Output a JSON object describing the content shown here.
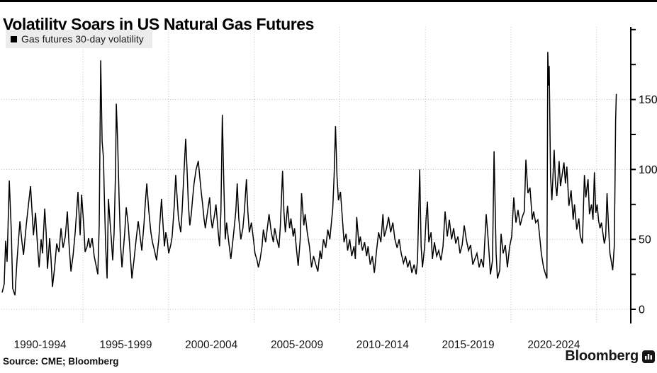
{
  "header": {
    "title": "Volatility Soars in US Natural Gas Futures"
  },
  "legend": {
    "label": "Gas futures 30-day volatility",
    "marker": "black-square"
  },
  "footer": {
    "source": "Source: CME; Bloomberg",
    "brand": "Bloomberg",
    "brand_icon": "bloomberg-terminal-icon"
  },
  "colors": {
    "line": "#000000",
    "grid": "#bfbfbf",
    "axis": "#000000",
    "tick_label": "#000000",
    "band_label": "#1a1a1a",
    "legend_bg": "#ececec",
    "background": "#ffffff",
    "top_rule": "#000000"
  },
  "chart_data": {
    "type": "line",
    "title": "Volatility Soars in US Natural Gas Futures",
    "xlabel": "",
    "ylabel": "",
    "grid": true,
    "legend_position": "top-left",
    "series_name": "Gas futures 30-day volatility",
    "y_axis_side": "right",
    "ylim": [
      -10,
      200
    ],
    "y_tick_labels": [
      0,
      50,
      100,
      150
    ],
    "y_minor_ticks": [
      25,
      75,
      125,
      175,
      200
    ],
    "x_gridline_years": [
      1995,
      2000,
      2005,
      2010,
      2015,
      2020,
      2025
    ],
    "x_band_labels": [
      {
        "label": "1990-1994",
        "center_year": 1992.5
      },
      {
        "label": "1995-1999",
        "center_year": 1997.5
      },
      {
        "label": "2000-2004",
        "center_year": 2002.5
      },
      {
        "label": "2005-2009",
        "center_year": 2007.5
      },
      {
        "label": "2010-2014",
        "center_year": 2012.5
      },
      {
        "label": "2015-2019",
        "center_year": 2017.5
      },
      {
        "label": "2020-2024",
        "center_year": 2022.5
      }
    ],
    "points": [
      [
        1990.28,
        12
      ],
      [
        1990.4,
        18
      ],
      [
        1990.49,
        49
      ],
      [
        1990.57,
        34
      ],
      [
        1990.7,
        92
      ],
      [
        1990.82,
        55
      ],
      [
        1990.9,
        15
      ],
      [
        1991.03,
        10
      ],
      [
        1991.15,
        35
      ],
      [
        1991.32,
        63
      ],
      [
        1991.44,
        48
      ],
      [
        1991.53,
        39
      ],
      [
        1991.69,
        60
      ],
      [
        1991.82,
        75
      ],
      [
        1991.94,
        88
      ],
      [
        1992.11,
        53
      ],
      [
        1992.23,
        69
      ],
      [
        1992.35,
        45
      ],
      [
        1992.44,
        30
      ],
      [
        1992.56,
        50
      ],
      [
        1992.64,
        40
      ],
      [
        1992.77,
        72
      ],
      [
        1992.85,
        55
      ],
      [
        1992.93,
        29
      ],
      [
        1993.06,
        51
      ],
      [
        1993.14,
        35
      ],
      [
        1993.22,
        16
      ],
      [
        1993.35,
        30
      ],
      [
        1993.47,
        47
      ],
      [
        1993.6,
        41
      ],
      [
        1993.72,
        58
      ],
      [
        1993.84,
        44
      ],
      [
        1993.97,
        52
      ],
      [
        1994.09,
        70
      ],
      [
        1994.18,
        48
      ],
      [
        1994.3,
        27
      ],
      [
        1994.42,
        38
      ],
      [
        1994.55,
        55
      ],
      [
        1994.71,
        84
      ],
      [
        1994.84,
        53
      ],
      [
        1994.92,
        82
      ],
      [
        1995.05,
        60
      ],
      [
        1995.13,
        41
      ],
      [
        1995.25,
        45
      ],
      [
        1995.33,
        51
      ],
      [
        1995.42,
        44
      ],
      [
        1995.54,
        51
      ],
      [
        1995.66,
        38
      ],
      [
        1995.79,
        30
      ],
      [
        1995.87,
        25
      ],
      [
        1995.95,
        60
      ],
      [
        1996.04,
        178
      ],
      [
        1996.12,
        120
      ],
      [
        1996.2,
        108
      ],
      [
        1996.24,
        85
      ],
      [
        1996.33,
        45
      ],
      [
        1996.41,
        22
      ],
      [
        1996.49,
        79
      ],
      [
        1996.57,
        65
      ],
      [
        1996.66,
        50
      ],
      [
        1996.74,
        35
      ],
      [
        1996.82,
        55
      ],
      [
        1996.91,
        100
      ],
      [
        1996.95,
        147
      ],
      [
        1997.03,
        120
      ],
      [
        1997.11,
        80
      ],
      [
        1997.2,
        45
      ],
      [
        1997.28,
        30
      ],
      [
        1997.36,
        42
      ],
      [
        1997.44,
        55
      ],
      [
        1997.53,
        73
      ],
      [
        1997.65,
        60
      ],
      [
        1997.73,
        45
      ],
      [
        1997.86,
        22
      ],
      [
        1997.98,
        35
      ],
      [
        1998.11,
        50
      ],
      [
        1998.23,
        63
      ],
      [
        1998.31,
        55
      ],
      [
        1998.44,
        42
      ],
      [
        1998.56,
        60
      ],
      [
        1998.64,
        75
      ],
      [
        1998.73,
        90
      ],
      [
        1998.85,
        70
      ],
      [
        1998.97,
        55
      ],
      [
        1999.06,
        48
      ],
      [
        1999.18,
        42
      ],
      [
        1999.3,
        35
      ],
      [
        1999.43,
        50
      ],
      [
        1999.51,
        65
      ],
      [
        1999.59,
        79
      ],
      [
        1999.68,
        60
      ],
      [
        1999.76,
        45
      ],
      [
        1999.84,
        55
      ],
      [
        1999.92,
        50
      ],
      [
        2000.01,
        40
      ],
      [
        2000.13,
        46
      ],
      [
        2000.21,
        52
      ],
      [
        2000.34,
        75
      ],
      [
        2000.42,
        96
      ],
      [
        2000.5,
        80
      ],
      [
        2000.58,
        65
      ],
      [
        2000.71,
        55
      ],
      [
        2000.79,
        70
      ],
      [
        2000.87,
        90
      ],
      [
        2001.0,
        122
      ],
      [
        2001.08,
        100
      ],
      [
        2001.16,
        75
      ],
      [
        2001.24,
        60
      ],
      [
        2001.33,
        68
      ],
      [
        2001.41,
        80
      ],
      [
        2001.49,
        90
      ],
      [
        2001.61,
        100
      ],
      [
        2001.74,
        106
      ],
      [
        2001.82,
        95
      ],
      [
        2001.9,
        85
      ],
      [
        2001.99,
        75
      ],
      [
        2002.07,
        65
      ],
      [
        2002.15,
        58
      ],
      [
        2002.28,
        70
      ],
      [
        2002.4,
        80
      ],
      [
        2002.48,
        65
      ],
      [
        2002.56,
        58
      ],
      [
        2002.69,
        68
      ],
      [
        2002.77,
        75
      ],
      [
        2002.9,
        55
      ],
      [
        2002.98,
        45
      ],
      [
        2003.06,
        70
      ],
      [
        2003.14,
        139
      ],
      [
        2003.23,
        90
      ],
      [
        2003.31,
        50
      ],
      [
        2003.39,
        62
      ],
      [
        2003.52,
        48
      ],
      [
        2003.64,
        36
      ],
      [
        2003.72,
        45
      ],
      [
        2003.81,
        55
      ],
      [
        2003.93,
        70
      ],
      [
        2004.01,
        90
      ],
      [
        2004.1,
        65
      ],
      [
        2004.22,
        50
      ],
      [
        2004.34,
        58
      ],
      [
        2004.43,
        70
      ],
      [
        2004.55,
        93
      ],
      [
        2004.63,
        70
      ],
      [
        2004.72,
        55
      ],
      [
        2004.84,
        62
      ],
      [
        2004.96,
        50
      ],
      [
        2005.05,
        40
      ],
      [
        2005.17,
        35
      ],
      [
        2005.25,
        30
      ],
      [
        2005.34,
        35
      ],
      [
        2005.46,
        45
      ],
      [
        2005.54,
        57
      ],
      [
        2005.67,
        48
      ],
      [
        2005.79,
        60
      ],
      [
        2005.87,
        68
      ],
      [
        2006.0,
        55
      ],
      [
        2006.12,
        48
      ],
      [
        2006.2,
        58
      ],
      [
        2006.33,
        50
      ],
      [
        2006.45,
        44
      ],
      [
        2006.53,
        60
      ],
      [
        2006.66,
        99
      ],
      [
        2006.74,
        70
      ],
      [
        2006.82,
        55
      ],
      [
        2006.95,
        74
      ],
      [
        2007.07,
        58
      ],
      [
        2007.15,
        65
      ],
      [
        2007.28,
        52
      ],
      [
        2007.36,
        58
      ],
      [
        2007.48,
        42
      ],
      [
        2007.57,
        31
      ],
      [
        2007.69,
        50
      ],
      [
        2007.77,
        83
      ],
      [
        2007.9,
        60
      ],
      [
        2007.98,
        68
      ],
      [
        2008.1,
        55
      ],
      [
        2008.23,
        45
      ],
      [
        2008.35,
        30
      ],
      [
        2008.47,
        38
      ],
      [
        2008.6,
        32
      ],
      [
        2008.72,
        27
      ],
      [
        2008.85,
        42
      ],
      [
        2008.93,
        36
      ],
      [
        2009.05,
        50
      ],
      [
        2009.18,
        44
      ],
      [
        2009.3,
        57
      ],
      [
        2009.42,
        50
      ],
      [
        2009.51,
        62
      ],
      [
        2009.59,
        72
      ],
      [
        2009.67,
        95
      ],
      [
        2009.75,
        131
      ],
      [
        2009.84,
        95
      ],
      [
        2009.92,
        78
      ],
      [
        2010.04,
        84
      ],
      [
        2010.17,
        62
      ],
      [
        2010.25,
        48
      ],
      [
        2010.37,
        54
      ],
      [
        2010.46,
        42
      ],
      [
        2010.58,
        50
      ],
      [
        2010.7,
        38
      ],
      [
        2010.83,
        45
      ],
      [
        2010.91,
        36
      ],
      [
        2010.99,
        66
      ],
      [
        2011.12,
        46
      ],
      [
        2011.2,
        52
      ],
      [
        2011.32,
        42
      ],
      [
        2011.45,
        48
      ],
      [
        2011.57,
        38
      ],
      [
        2011.65,
        45
      ],
      [
        2011.78,
        32
      ],
      [
        2011.9,
        38
      ],
      [
        2012.02,
        26
      ],
      [
        2012.15,
        42
      ],
      [
        2012.27,
        55
      ],
      [
        2012.4,
        48
      ],
      [
        2012.52,
        68
      ],
      [
        2012.6,
        52
      ],
      [
        2012.73,
        58
      ],
      [
        2012.85,
        66
      ],
      [
        2012.97,
        55
      ],
      [
        2013.1,
        62
      ],
      [
        2013.22,
        50
      ],
      [
        2013.35,
        44
      ],
      [
        2013.47,
        50
      ],
      [
        2013.59,
        40
      ],
      [
        2013.72,
        33
      ],
      [
        2013.84,
        38
      ],
      [
        2013.97,
        30
      ],
      [
        2014.09,
        35
      ],
      [
        2014.21,
        26
      ],
      [
        2014.34,
        32
      ],
      [
        2014.46,
        25
      ],
      [
        2014.54,
        35
      ],
      [
        2014.67,
        100
      ],
      [
        2014.75,
        45
      ],
      [
        2014.83,
        30
      ],
      [
        2014.96,
        45
      ],
      [
        2015.04,
        65
      ],
      [
        2015.12,
        77
      ],
      [
        2015.2,
        48
      ],
      [
        2015.33,
        55
      ],
      [
        2015.41,
        36
      ],
      [
        2015.53,
        48
      ],
      [
        2015.66,
        38
      ],
      [
        2015.78,
        42
      ],
      [
        2015.91,
        35
      ],
      [
        2016.03,
        45
      ],
      [
        2016.15,
        70
      ],
      [
        2016.28,
        52
      ],
      [
        2016.4,
        64
      ],
      [
        2016.53,
        50
      ],
      [
        2016.65,
        58
      ],
      [
        2016.77,
        47
      ],
      [
        2016.9,
        52
      ],
      [
        2017.02,
        40
      ],
      [
        2017.15,
        46
      ],
      [
        2017.27,
        60
      ],
      [
        2017.39,
        50
      ],
      [
        2017.52,
        42
      ],
      [
        2017.64,
        46
      ],
      [
        2017.77,
        32
      ],
      [
        2017.89,
        36
      ],
      [
        2018.01,
        40
      ],
      [
        2018.14,
        30
      ],
      [
        2018.26,
        36
      ],
      [
        2018.39,
        30
      ],
      [
        2018.55,
        68
      ],
      [
        2018.68,
        48
      ],
      [
        2018.8,
        25
      ],
      [
        2018.92,
        35
      ],
      [
        2019.01,
        113
      ],
      [
        2019.13,
        40
      ],
      [
        2019.21,
        22
      ],
      [
        2019.34,
        28
      ],
      [
        2019.42,
        54
      ],
      [
        2019.54,
        40
      ],
      [
        2019.67,
        46
      ],
      [
        2019.79,
        30
      ],
      [
        2019.92,
        45
      ],
      [
        2020.04,
        52
      ],
      [
        2020.16,
        80
      ],
      [
        2020.29,
        62
      ],
      [
        2020.41,
        71
      ],
      [
        2020.54,
        60
      ],
      [
        2020.66,
        66
      ],
      [
        2020.78,
        70
      ],
      [
        2020.87,
        107
      ],
      [
        2020.99,
        83
      ],
      [
        2021.11,
        87
      ],
      [
        2021.24,
        64
      ],
      [
        2021.32,
        70
      ],
      [
        2021.44,
        62
      ],
      [
        2021.57,
        64
      ],
      [
        2021.65,
        55
      ],
      [
        2021.77,
        40
      ],
      [
        2021.9,
        30
      ],
      [
        2022.02,
        25
      ],
      [
        2022.1,
        22
      ],
      [
        2022.15,
        184
      ],
      [
        2022.2,
        160
      ],
      [
        2022.23,
        174
      ],
      [
        2022.31,
        95
      ],
      [
        2022.39,
        78
      ],
      [
        2022.52,
        114
      ],
      [
        2022.6,
        90
      ],
      [
        2022.68,
        81
      ],
      [
        2022.81,
        106
      ],
      [
        2022.89,
        88
      ],
      [
        2022.97,
        95
      ],
      [
        2023.09,
        105
      ],
      [
        2023.18,
        90
      ],
      [
        2023.26,
        102
      ],
      [
        2023.38,
        74
      ],
      [
        2023.51,
        85
      ],
      [
        2023.63,
        64
      ],
      [
        2023.71,
        75
      ],
      [
        2023.84,
        57
      ],
      [
        2023.96,
        65
      ],
      [
        2024.04,
        53
      ],
      [
        2024.17,
        47
      ],
      [
        2024.29,
        96
      ],
      [
        2024.37,
        80
      ],
      [
        2024.5,
        93
      ],
      [
        2024.58,
        68
      ],
      [
        2024.7,
        75
      ],
      [
        2024.79,
        64
      ],
      [
        2024.87,
        98
      ],
      [
        2024.95,
        69
      ],
      [
        2025.03,
        75
      ],
      [
        2025.12,
        63
      ],
      [
        2025.2,
        58
      ],
      [
        2025.28,
        62
      ],
      [
        2025.36,
        55
      ],
      [
        2025.45,
        47
      ],
      [
        2025.53,
        52
      ],
      [
        2025.61,
        83
      ],
      [
        2025.7,
        58
      ],
      [
        2025.78,
        40
      ],
      [
        2025.86,
        34
      ],
      [
        2025.94,
        28
      ],
      [
        2026.03,
        45
      ],
      [
        2026.07,
        88
      ],
      [
        2026.11,
        135
      ],
      [
        2026.15,
        154
      ]
    ]
  }
}
